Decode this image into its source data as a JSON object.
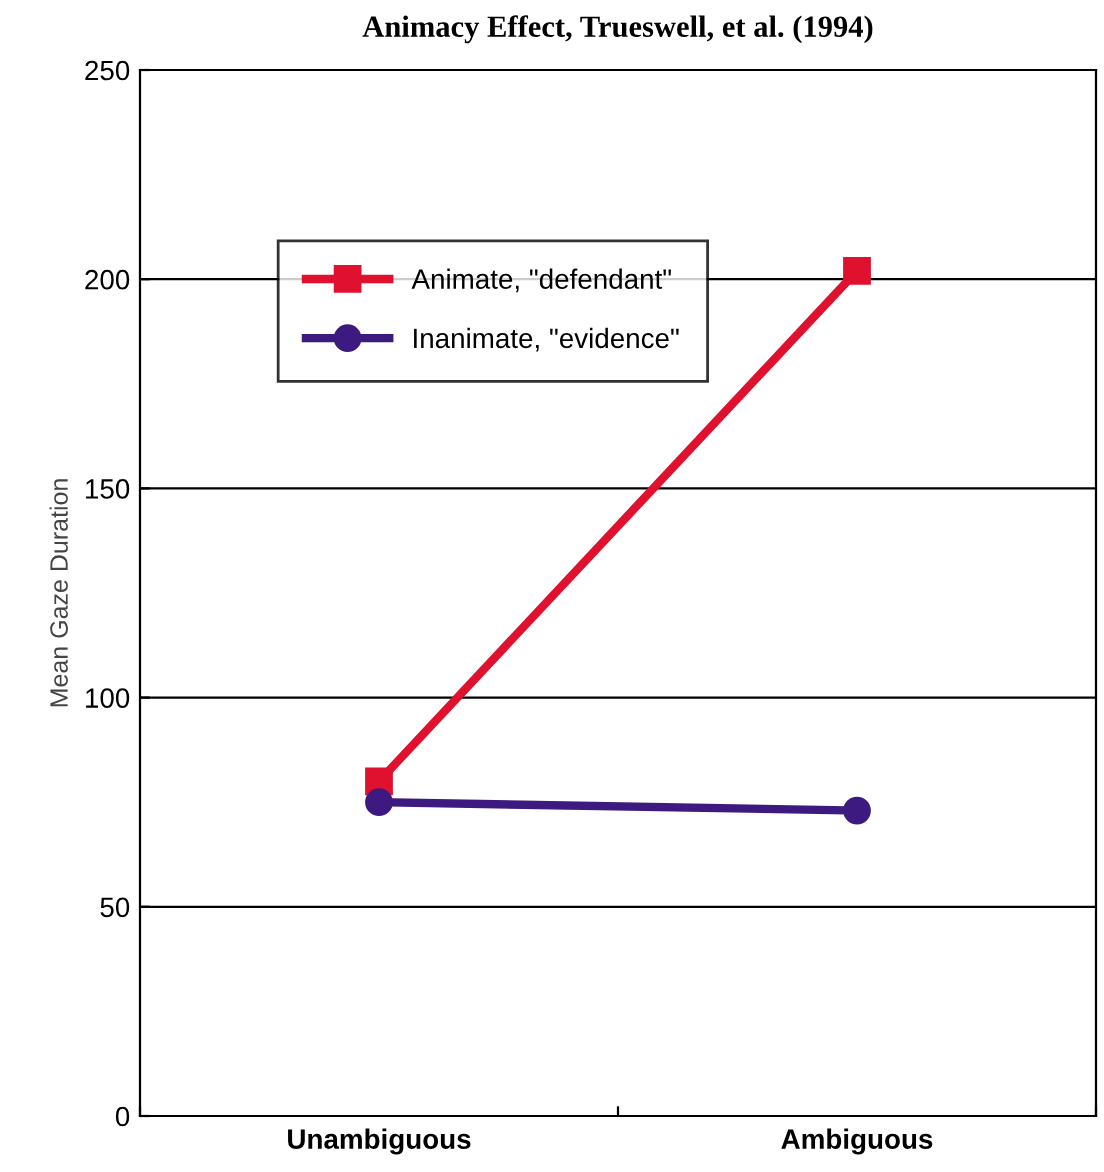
{
  "chart_data": {
    "type": "line",
    "title": "Animacy Effect, Trueswell, et al. (1994)",
    "ylabel": "Mean Gaze Duration",
    "categories": [
      "Unambiguous",
      "Ambiguous"
    ],
    "series": [
      {
        "name": "Animate, \"defendant\"",
        "color": "#e0102f",
        "values": [
          80,
          202
        ],
        "marker": "square"
      },
      {
        "name": "Inanimate, \"evidence\"",
        "color": "#3d1a80",
        "values": [
          75,
          73
        ],
        "marker": "circle"
      }
    ],
    "ylim": [
      0,
      250
    ],
    "yticks": [
      0,
      50,
      100,
      150,
      200,
      250
    ],
    "grid": "y",
    "legend": "top left",
    "line_style": "solid"
  }
}
